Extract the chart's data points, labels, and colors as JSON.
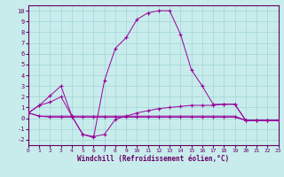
{
  "xlabel": "Windchill (Refroidissement éolien,°C)",
  "background_color": "#c8ecec",
  "grid_color": "#a0d4d4",
  "line_color": "#990099",
  "xlim": [
    0,
    23
  ],
  "ylim": [
    -2.5,
    10.5
  ],
  "yticks": [
    -2,
    -1,
    0,
    1,
    2,
    3,
    4,
    5,
    6,
    7,
    8,
    9,
    10
  ],
  "xticks": [
    0,
    1,
    2,
    3,
    4,
    5,
    6,
    7,
    8,
    9,
    10,
    11,
    12,
    13,
    14,
    15,
    16,
    17,
    18,
    19,
    20,
    21,
    22,
    23
  ],
  "s1_x": [
    0,
    1,
    2,
    3,
    4,
    5,
    6,
    7,
    8,
    9,
    10,
    11,
    12,
    13,
    14,
    15,
    16,
    17,
    18,
    19,
    20,
    21,
    22,
    23
  ],
  "s1_y": [
    0.5,
    1.2,
    2.1,
    3.0,
    0.2,
    -1.5,
    -1.8,
    3.5,
    6.5,
    7.5,
    9.2,
    9.8,
    10.0,
    10.0,
    7.8,
    4.5,
    3.0,
    1.3,
    1.3,
    1.3,
    -0.2,
    -0.2,
    -0.2,
    -0.2
  ],
  "s2_x": [
    0,
    1,
    2,
    3,
    4,
    5,
    6,
    7,
    8,
    9,
    10,
    11,
    12,
    13,
    14,
    15,
    16,
    17,
    18,
    19,
    20,
    21,
    22,
    23
  ],
  "s2_y": [
    0.5,
    1.2,
    1.5,
    2.0,
    0.2,
    -1.5,
    -1.7,
    -1.5,
    -0.1,
    0.2,
    0.5,
    0.7,
    0.9,
    1.0,
    1.1,
    1.2,
    1.2,
    1.2,
    1.3,
    1.3,
    -0.2,
    -0.2,
    -0.2,
    -0.2
  ],
  "s3_x": [
    0,
    1,
    2,
    3,
    4,
    5,
    6,
    7,
    8,
    9,
    10,
    11,
    12,
    13,
    14,
    15,
    16,
    17,
    18,
    19,
    20,
    21,
    22,
    23
  ],
  "s3_y": [
    0.5,
    0.2,
    0.1,
    0.1,
    0.1,
    0.1,
    0.1,
    0.1,
    0.1,
    0.1,
    0.1,
    0.1,
    0.1,
    0.1,
    0.1,
    0.1,
    0.1,
    0.1,
    0.1,
    0.1,
    -0.2,
    -0.2,
    -0.2,
    -0.2
  ],
  "s4_x": [
    0,
    1,
    2,
    3,
    4,
    5,
    6,
    7,
    8,
    9,
    10,
    11,
    12,
    13,
    14,
    15,
    16,
    17,
    18,
    19,
    20,
    21,
    22,
    23
  ],
  "s4_y": [
    0.5,
    0.2,
    0.2,
    0.2,
    0.2,
    0.2,
    0.2,
    0.2,
    0.2,
    0.2,
    0.2,
    0.2,
    0.2,
    0.2,
    0.2,
    0.2,
    0.2,
    0.2,
    0.2,
    0.2,
    -0.2,
    -0.2,
    -0.2,
    -0.2
  ]
}
